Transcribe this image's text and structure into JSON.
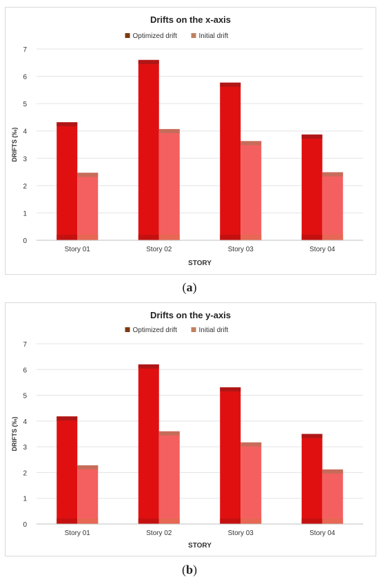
{
  "captions": {
    "a_letter": "a",
    "b_letter": "b"
  },
  "chart_data": [
    {
      "type": "bar",
      "title": "Drifts on the x-axis",
      "xlabel": "STORY",
      "ylabel": "DRIFTS (‰)",
      "categories": [
        "Story 01",
        "Story 02",
        "Story 03",
        "Story 04"
      ],
      "ylim": [
        0,
        7
      ],
      "yticks": [
        "0",
        "1",
        "2",
        "3",
        "4",
        "5",
        "6",
        "7"
      ],
      "grid": true,
      "legend": "top",
      "series": [
        {
          "name": "Optimized drift",
          "values": [
            4.32,
            6.6,
            5.77,
            3.87
          ],
          "color": "#e01010",
          "legend_color": "#7b3a10"
        },
        {
          "name": "Initial drift",
          "values": [
            2.47,
            4.07,
            3.63,
            2.49
          ],
          "color": "#f46060",
          "legend_color": "#c08060"
        }
      ]
    },
    {
      "type": "bar",
      "title": "Drifts on the y-axis",
      "xlabel": "STORY",
      "ylabel": "DRIFTS (‰)",
      "categories": [
        "Story 01",
        "Story 02",
        "Story 03",
        "Story 04"
      ],
      "ylim": [
        0,
        7
      ],
      "yticks": [
        "0",
        "1",
        "2",
        "3",
        "4",
        "5",
        "6",
        "7"
      ],
      "grid": true,
      "legend": "top",
      "series": [
        {
          "name": "Optimized drift",
          "values": [
            4.18,
            6.2,
            5.31,
            3.5
          ],
          "color": "#e01010",
          "legend_color": "#7b3a10"
        },
        {
          "name": "Initial drift",
          "values": [
            2.28,
            3.6,
            3.17,
            2.12
          ],
          "color": "#f46060",
          "legend_color": "#c08060"
        }
      ]
    }
  ]
}
